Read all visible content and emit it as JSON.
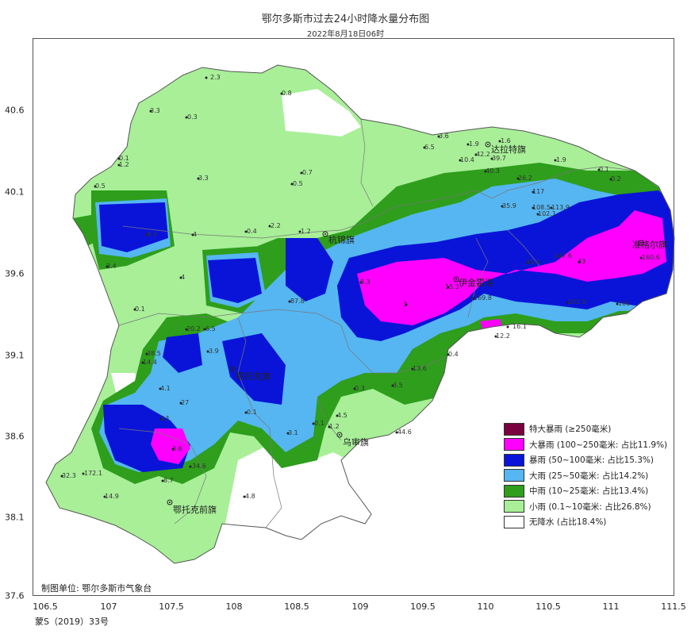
{
  "title": "鄂尔多斯市过去24小时降水量分布图",
  "subtitle": "2022年8月18日06时",
  "axes": {
    "x_ticks": [
      "106.5",
      "107",
      "107.5",
      "108",
      "108.5",
      "109",
      "109.5",
      "110",
      "110.5",
      "111",
      "111.5"
    ],
    "y_ticks": [
      "40.6",
      "40.1",
      "39.6",
      "39.1",
      "38.6",
      "38.1",
      "37.6"
    ]
  },
  "legend": [
    {
      "label": "特大暴雨 (≥250毫米)",
      "color": "#7a0040"
    },
    {
      "label": "大暴雨 (100~250毫米:  占比11.9%)",
      "color": "#ff00ff"
    },
    {
      "label": "暴雨 (50~100毫米:  占比15.3%)",
      "color": "#0a14d8"
    },
    {
      "label": "大雨 (25~50毫米:  占比14.2%)",
      "color": "#55b6f2"
    },
    {
      "label": "中雨 (10~25毫米:  占比13.4%)",
      "color": "#2e9e1c"
    },
    {
      "label": "小雨 (0.1~10毫米:  占比26.8%)",
      "color": "#a8ef98"
    },
    {
      "label": "无降水 (占比18.4%)",
      "color": "#ffffff"
    }
  ],
  "places": [
    {
      "name": "达拉特旗"
    },
    {
      "name": "杭锦旗"
    },
    {
      "name": "准格尔旗"
    },
    {
      "name": "伊金霍洛"
    },
    {
      "name": "鄂托克旗"
    },
    {
      "name": "乌审旗"
    },
    {
      "name": "鄂托克前旗"
    }
  ],
  "stations": [
    "2.3",
    "0.8",
    "3.3",
    "0.3",
    "0.1",
    "1.2",
    "0.5",
    "3.3",
    "0.7",
    "0.5",
    "0.4",
    "2.2",
    "1.2",
    "4",
    "8.3",
    "3.4",
    "4",
    "0.1",
    "87.8",
    "20.2",
    "6.5",
    "3.9",
    "38.5",
    "14.4",
    "4.1",
    "27",
    "13",
    "3.6",
    "34.6",
    "8.7",
    "32.3",
    "172.1",
    "14.9",
    "0.1",
    "4.8",
    "3.1",
    "0.1",
    "4.5",
    "1.2",
    "44.6",
    "13.6",
    "3.5",
    "0.3",
    "0.4",
    "16.1",
    "12.2",
    "3",
    "8.3",
    "15.3",
    "169.8",
    "202.8",
    "106",
    "160.6",
    "147.6",
    "33",
    "35.4",
    "117",
    "108.5",
    "113.9",
    "102.1",
    "26.2",
    "35.9",
    "40.3",
    "42.2",
    "10.4",
    "39.7",
    "6.5",
    "1.9",
    "1.6",
    "1.9",
    "0.1",
    "0.2",
    "3.6",
    "3.7",
    "6.1",
    "9.3",
    "0.1"
  ],
  "producer": "制图单位: 鄂尔多斯市气象台",
  "approval": "蒙S（2019）33号"
}
